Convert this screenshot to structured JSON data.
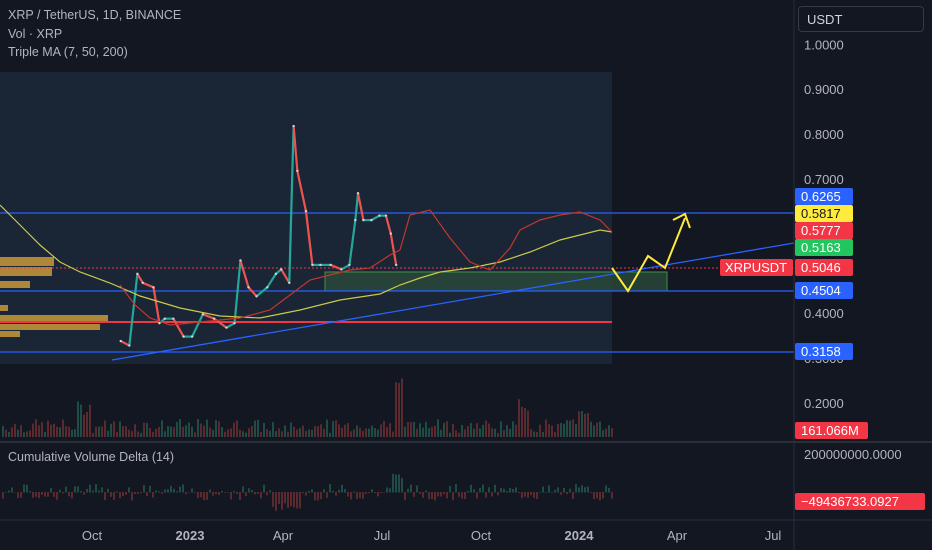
{
  "header": {
    "symbol": "XRP / TetherUS, 1D, BINANCE",
    "vol_label": "Vol · XRP",
    "ma_label": "Triple MA (7, 50, 200)",
    "currency": "USDT"
  },
  "cvd_label": "Cumulative Volume Delta (14)",
  "colors": {
    "background": "#131722",
    "up": "#26a69a",
    "down": "#ef5350",
    "ma_fast": "#ef5350",
    "ma_slow": "#c9c94a",
    "trendline": "#2962ff",
    "projection": "#ffeb3b",
    "support_red": "#f23645",
    "zone": "#4caf50"
  },
  "chart_data": {
    "type": "line",
    "title": "XRP / TetherUS, 1D, BINANCE",
    "x_ticks": [
      "Oct",
      "2023",
      "Apr",
      "Jul",
      "Oct",
      "2024",
      "Apr",
      "Jul"
    ],
    "y_ticks": [
      1.0,
      0.9,
      0.8,
      0.7,
      0.6,
      0.4,
      0.3,
      0.2
    ],
    "ylim": [
      0.27,
      1.05
    ],
    "series": [
      {
        "name": "XRPUSDT",
        "x": [
          "2022-08-25",
          "2022-09-10",
          "2022-09-25",
          "2022-10-05",
          "2022-10-25",
          "2022-11-05",
          "2022-11-15",
          "2022-12-01",
          "2022-12-20",
          "2023-01-05",
          "2023-01-25",
          "2023-02-15",
          "2023-03-10",
          "2023-03-25",
          "2023-04-05",
          "2023-04-20",
          "2023-05-05",
          "2023-05-25",
          "2023-06-10",
          "2023-06-20",
          "2023-07-05",
          "2023-07-13",
          "2023-07-20",
          "2023-08-05",
          "2023-08-17",
          "2023-09-01",
          "2023-09-20",
          "2023-10-10",
          "2023-10-25",
          "2023-11-05",
          "2023-11-10",
          "2023-11-20",
          "2023-12-05",
          "2023-12-20",
          "2024-01-01",
          "2024-01-10",
          "2024-01-20"
        ],
        "values": [
          0.34,
          0.33,
          0.49,
          0.47,
          0.46,
          0.38,
          0.39,
          0.39,
          0.35,
          0.35,
          0.4,
          0.39,
          0.37,
          0.38,
          0.52,
          0.46,
          0.44,
          0.46,
          0.49,
          0.5,
          0.47,
          0.82,
          0.72,
          0.63,
          0.51,
          0.51,
          0.51,
          0.5,
          0.51,
          0.61,
          0.67,
          0.61,
          0.61,
          0.62,
          0.62,
          0.58,
          0.51
        ]
      }
    ],
    "price_labels": [
      "0.6265",
      "0.5817",
      "0.5777",
      "0.5163",
      "0.5046",
      "0.4504",
      "0.3158"
    ],
    "symbol_label": "XRPUSDT",
    "volume_label": "161.066M",
    "cvd_tick": "200000000.0000",
    "cvd_value": "−49436733.0927"
  }
}
